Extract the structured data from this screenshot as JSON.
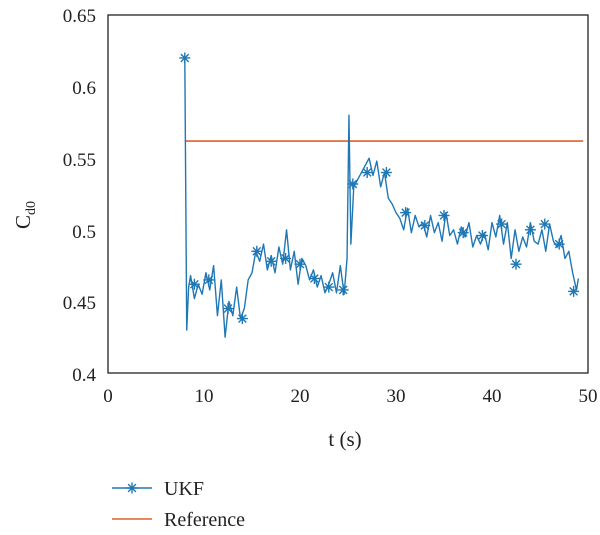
{
  "chart_data": {
    "type": "line",
    "xlabel": "t (s)",
    "ylabel": "C",
    "ylabel_sub": "d0",
    "xlim": [
      0,
      50
    ],
    "ylim": [
      0.4,
      0.65
    ],
    "x_ticks": [
      "0",
      "10",
      "20",
      "30",
      "40",
      "50"
    ],
    "y_ticks": [
      "0.4",
      "0.45",
      "0.5",
      "0.55",
      "0.6",
      "0.65"
    ],
    "grid": false,
    "legend_position": "below",
    "colors": {
      "ukf": "#1f77b4",
      "reference": "#e0612a"
    },
    "series": [
      {
        "name": "UKF",
        "marker": "asterisk",
        "x": [
          8.0,
          8.2,
          8.4,
          8.6,
          9.0,
          9.4,
          9.8,
          10.2,
          10.6,
          11.0,
          11.4,
          11.8,
          12.2,
          12.6,
          13.0,
          13.4,
          13.8,
          14.2,
          14.6,
          15.0,
          15.4,
          15.8,
          16.2,
          16.6,
          17.0,
          17.4,
          17.8,
          18.2,
          18.6,
          19.0,
          19.4,
          19.8,
          20.2,
          20.6,
          21.0,
          21.4,
          21.8,
          22.2,
          22.6,
          23.0,
          23.4,
          23.8,
          24.2,
          24.6,
          24.9,
          25.1,
          25.3,
          25.6,
          26.0,
          26.4,
          26.8,
          27.2,
          27.6,
          28.0,
          28.4,
          28.8,
          29.2,
          29.6,
          30.0,
          30.4,
          30.8,
          31.2,
          31.6,
          32.0,
          32.4,
          32.8,
          33.2,
          33.6,
          34.0,
          34.4,
          34.8,
          35.2,
          35.6,
          36.0,
          36.4,
          36.8,
          37.2,
          37.6,
          38.0,
          38.4,
          38.8,
          39.2,
          39.6,
          40.0,
          40.4,
          40.8,
          41.2,
          41.6,
          42.0,
          42.4,
          42.8,
          43.2,
          43.6,
          44.0,
          44.4,
          44.8,
          45.2,
          45.6,
          46.0,
          46.4,
          46.8,
          47.2,
          47.6,
          48.0,
          48.4,
          48.8,
          49.0
        ],
        "y": [
          0.62,
          0.43,
          0.46,
          0.468,
          0.452,
          0.462,
          0.455,
          0.47,
          0.458,
          0.475,
          0.44,
          0.465,
          0.425,
          0.45,
          0.44,
          0.46,
          0.438,
          0.445,
          0.465,
          0.47,
          0.485,
          0.478,
          0.49,
          0.472,
          0.482,
          0.47,
          0.488,
          0.476,
          0.5,
          0.472,
          0.485,
          0.462,
          0.48,
          0.475,
          0.465,
          0.472,
          0.46,
          0.468,
          0.456,
          0.462,
          0.47,
          0.456,
          0.475,
          0.455,
          0.48,
          0.58,
          0.49,
          0.53,
          0.535,
          0.54,
          0.545,
          0.55,
          0.538,
          0.548,
          0.53,
          0.54,
          0.522,
          0.518,
          0.512,
          0.508,
          0.5,
          0.515,
          0.498,
          0.51,
          0.502,
          0.505,
          0.495,
          0.51,
          0.498,
          0.505,
          0.492,
          0.512,
          0.496,
          0.5,
          0.49,
          0.502,
          0.495,
          0.505,
          0.488,
          0.496,
          0.49,
          0.498,
          0.486,
          0.505,
          0.495,
          0.51,
          0.49,
          0.505,
          0.48,
          0.5,
          0.485,
          0.495,
          0.488,
          0.505,
          0.492,
          0.49,
          0.5,
          0.485,
          0.504,
          0.492,
          0.488,
          0.496,
          0.48,
          0.485,
          0.47,
          0.458,
          0.466
        ],
        "marker_x": [
          8.0,
          9.0,
          10.5,
          12.5,
          14.0,
          15.5,
          17.0,
          18.5,
          20.0,
          21.5,
          23.0,
          24.5,
          25.5,
          27.0,
          29.0,
          31.0,
          33.0,
          35.0,
          37.0,
          39.0,
          41.0,
          42.5,
          44.0,
          45.5,
          47.0,
          48.5
        ],
        "marker_y": [
          0.62,
          0.462,
          0.465,
          0.445,
          0.438,
          0.485,
          0.478,
          0.48,
          0.476,
          0.466,
          0.46,
          0.458,
          0.532,
          0.54,
          0.54,
          0.512,
          0.503,
          0.51,
          0.498,
          0.496,
          0.504,
          0.476,
          0.5,
          0.504,
          0.49,
          0.457
        ]
      },
      {
        "name": "Reference",
        "x": [
          8,
          49.5
        ],
        "y": [
          0.562,
          0.562
        ]
      }
    ]
  }
}
